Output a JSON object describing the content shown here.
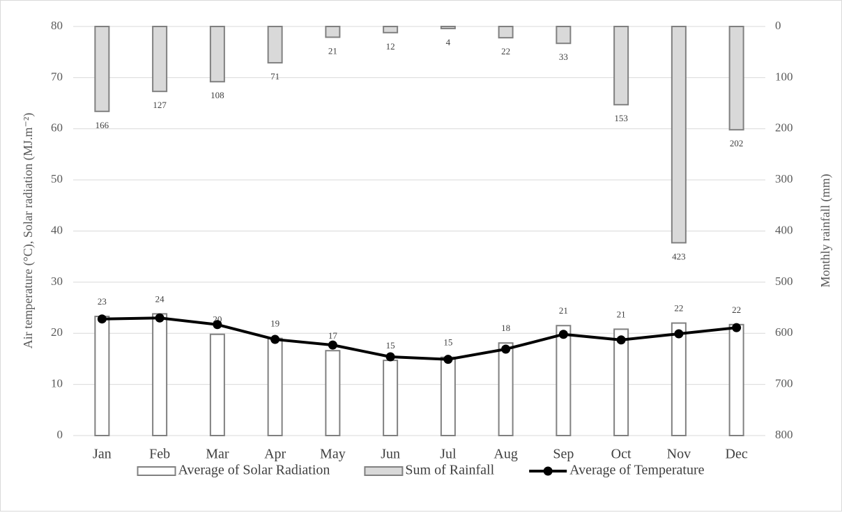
{
  "chart_data": {
    "type": "bar",
    "categories": [
      "Jan",
      "Feb",
      "Mar",
      "Apr",
      "May",
      "Jun",
      "Jul",
      "Aug",
      "Sep",
      "Oct",
      "Nov",
      "Dec"
    ],
    "ylabel": "Air temperature (°C), Solar radiation (MJ.m⁻²)",
    "y2label": "Monthly rainfall (mm)",
    "ylim": [
      0,
      80
    ],
    "yticks": [
      0,
      10,
      20,
      30,
      40,
      50,
      60,
      70,
      80
    ],
    "y2lim": [
      800,
      0
    ],
    "y2ticks": [
      0,
      100,
      200,
      300,
      400,
      500,
      600,
      700,
      800
    ],
    "grid": true,
    "legend": "bottom",
    "series": [
      {
        "name": "Average of Solar Radiation",
        "type": "bar",
        "color": "#ffffff",
        "edgecolor": "#808080",
        "values": [
          23.3,
          23.8,
          19.8,
          19.0,
          16.6,
          14.7,
          15.3,
          18.1,
          21.5,
          20.8,
          22.0,
          21.7
        ],
        "value_labels": [
          "23",
          "24",
          "20",
          "19",
          "17",
          "15",
          "15",
          "18",
          "21",
          "21",
          "22",
          "22"
        ]
      },
      {
        "name": "Sum of Rainfall",
        "type": "bar",
        "axis": "y2",
        "color": "#d9d9d9",
        "edgecolor": "#808080",
        "values": [
          166,
          127,
          108,
          71,
          21,
          12,
          4,
          22,
          33,
          153,
          423,
          202
        ]
      },
      {
        "name": "Average of Temperature",
        "type": "line",
        "color": "#000000",
        "values": [
          22.8,
          23.0,
          21.7,
          18.8,
          17.7,
          15.4,
          14.9,
          16.9,
          19.8,
          18.7,
          19.9,
          21.1
        ]
      }
    ]
  }
}
